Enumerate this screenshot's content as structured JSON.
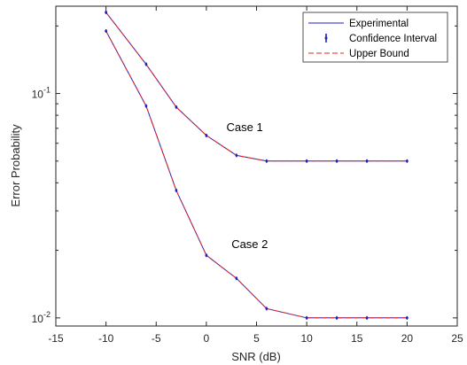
{
  "chart_data": {
    "type": "line",
    "xlabel": "SNR (dB)",
    "ylabel": "Error Probability",
    "xlim": [
      -15,
      25
    ],
    "ylim": [
      0.0092,
      0.245
    ],
    "yscale": "log",
    "xticks": [
      -15,
      -10,
      -5,
      0,
      5,
      10,
      15,
      20,
      25
    ],
    "yticks": [
      {
        "value": 0.1,
        "base": "10",
        "exp": "-1"
      },
      {
        "value": 0.01,
        "base": "10",
        "exp": "-2"
      }
    ],
    "grid": false,
    "legend": {
      "position": "top-right",
      "entries": [
        {
          "label": "Experimental",
          "style": "solid-line",
          "color": "#1f1fbf"
        },
        {
          "label": "Confidence Interval",
          "style": "errorbar",
          "color": "#1f1fbf"
        },
        {
          "label": "Upper Bound",
          "style": "dashed-line",
          "color": "#e8251f"
        }
      ]
    },
    "colors": {
      "experimental": "#1f1fbf",
      "upper_bound": "#e8251f"
    },
    "x": [
      -10,
      -6,
      -3,
      0,
      3,
      6,
      10,
      13,
      16,
      20
    ],
    "series": [
      {
        "annotation": "Case 1",
        "annotation_at": {
          "x": 2,
          "y": 0.068
        },
        "values": [
          0.23,
          0.135,
          0.087,
          0.065,
          0.053,
          0.05,
          0.05,
          0.05,
          0.05,
          0.05
        ]
      },
      {
        "annotation": "Case 2",
        "annotation_at": {
          "x": 2.5,
          "y": 0.0205
        },
        "values": [
          0.19,
          0.088,
          0.037,
          0.019,
          0.015,
          0.011,
          0.01,
          0.01,
          0.01,
          0.01
        ]
      }
    ]
  }
}
